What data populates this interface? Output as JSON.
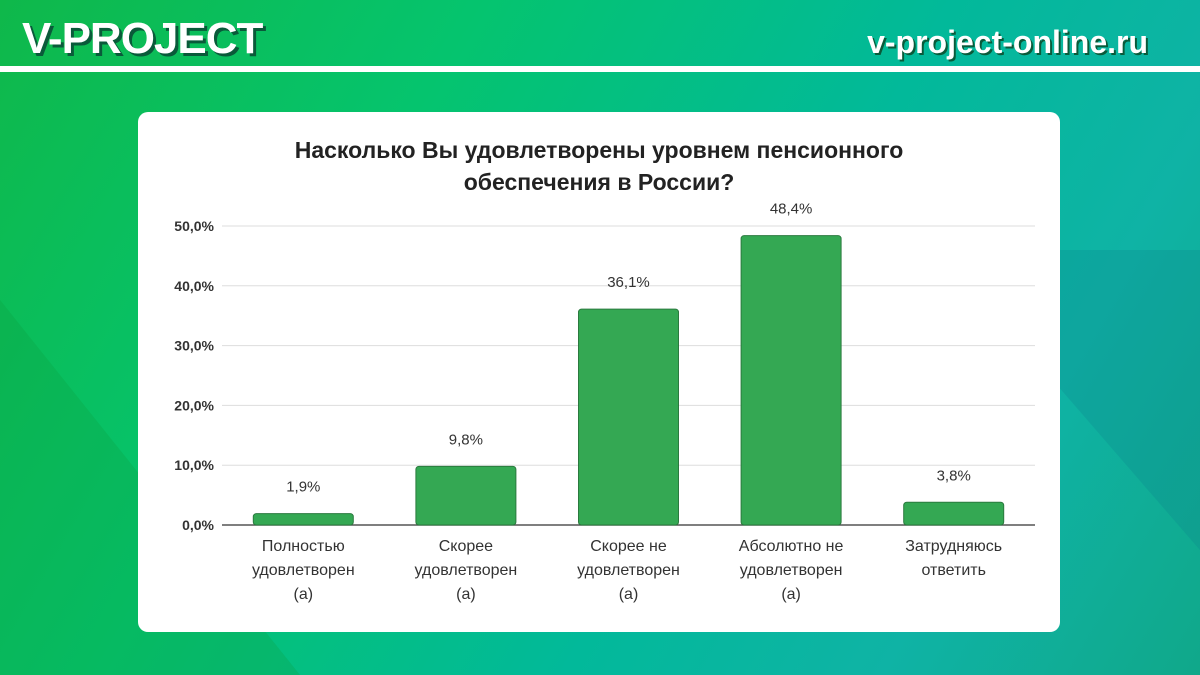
{
  "header": {
    "brand": "V-PROJECT",
    "site": "v-project-online.ru"
  },
  "chart_data": {
    "type": "bar",
    "title_line1": "Насколько Вы удовлетворены уровнем пенсионного",
    "title_line2": "обеспечения в России?",
    "categories": [
      [
        "Полностью",
        "удовлетворен",
        "(а)"
      ],
      [
        "Скорее",
        "удовлетворен",
        "(а)"
      ],
      [
        "Скорее не",
        "удовлетворен",
        "(а)"
      ],
      [
        "Абсолютно не",
        "удовлетворен",
        "(а)"
      ],
      [
        "Затрудняюсь",
        "ответить"
      ]
    ],
    "values": [
      1.9,
      9.8,
      36.1,
      48.4,
      3.8
    ],
    "value_labels": [
      "1,9%",
      "9,8%",
      "36,1%",
      "48,4%",
      "3,8%"
    ],
    "yticks": [
      0,
      10,
      20,
      30,
      40,
      50
    ],
    "ytick_labels": [
      "0,0%",
      "10,0%",
      "20,0%",
      "30,0%",
      "40,0%",
      "50,0%"
    ],
    "ylim": [
      0,
      50
    ],
    "grid": true,
    "bar_color": "#34a853"
  }
}
